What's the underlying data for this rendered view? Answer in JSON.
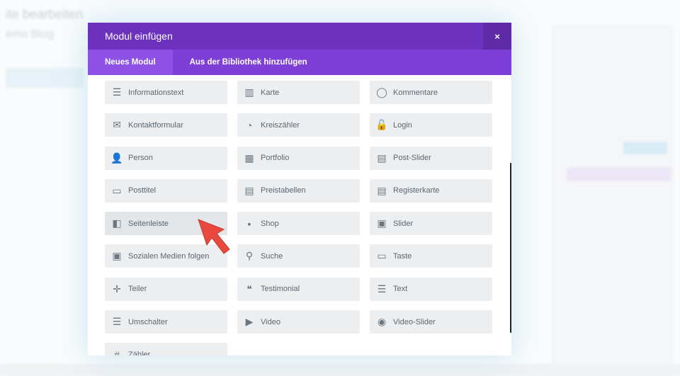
{
  "background": {
    "page_title": "ite bearbeiten",
    "subtitle": "emo Blog"
  },
  "modal": {
    "title": "Modul einfügen",
    "close_label": "×",
    "tabs": [
      {
        "label": "Neues Modul",
        "active": true
      },
      {
        "label": "Aus der Bibliothek hinzufügen",
        "active": false
      }
    ],
    "accent": "#6c31bd",
    "modules": [
      {
        "label": "Informationstext",
        "icon": "info-bubble-icon",
        "glyph": "☰"
      },
      {
        "label": "Karte",
        "icon": "map-icon",
        "glyph": "▥"
      },
      {
        "label": "Kommentare",
        "icon": "comments-icon",
        "glyph": "◯"
      },
      {
        "label": "Kontaktformular",
        "icon": "envelope-icon",
        "glyph": "✉"
      },
      {
        "label": "Kreiszähler",
        "icon": "circle-counter-icon",
        "glyph": "◔"
      },
      {
        "label": "Login",
        "icon": "lock-icon",
        "glyph": "🔓"
      },
      {
        "label": "Person",
        "icon": "person-icon",
        "glyph": "👤"
      },
      {
        "label": "Portfolio",
        "icon": "grid-icon",
        "glyph": "▦"
      },
      {
        "label": "Post-Slider",
        "icon": "post-slider-icon",
        "glyph": "▤"
      },
      {
        "label": "Posttitel",
        "icon": "post-title-icon",
        "glyph": "▭"
      },
      {
        "label": "Preistabellen",
        "icon": "pricing-table-icon",
        "glyph": "▤"
      },
      {
        "label": "Registerkarte",
        "icon": "tabs-icon",
        "glyph": "▤"
      },
      {
        "label": "Seitenleiste",
        "icon": "sidebar-icon",
        "glyph": "◧"
      },
      {
        "label": "Shop",
        "icon": "shop-icon",
        "glyph": "▪"
      },
      {
        "label": "Slider",
        "icon": "slider-icon",
        "glyph": "▣"
      },
      {
        "label": "Sozialen Medien folgen",
        "icon": "social-follow-icon",
        "glyph": "▣"
      },
      {
        "label": "Suche",
        "icon": "search-icon",
        "glyph": "⚲"
      },
      {
        "label": "Taste",
        "icon": "button-icon",
        "glyph": "▭"
      },
      {
        "label": "Teiler",
        "icon": "divider-icon",
        "glyph": "✛"
      },
      {
        "label": "Testimonial",
        "icon": "quote-icon",
        "glyph": "❝"
      },
      {
        "label": "Text",
        "icon": "text-icon",
        "glyph": "☰"
      },
      {
        "label": "Umschalter",
        "icon": "toggle-icon",
        "glyph": "☰"
      },
      {
        "label": "Video",
        "icon": "video-icon",
        "glyph": "▶"
      },
      {
        "label": "Video-Slider",
        "icon": "video-slider-icon",
        "glyph": "◉"
      },
      {
        "label": "Zähler",
        "icon": "counter-icon",
        "glyph": "#"
      }
    ]
  },
  "pointer_color": "#e8493f"
}
